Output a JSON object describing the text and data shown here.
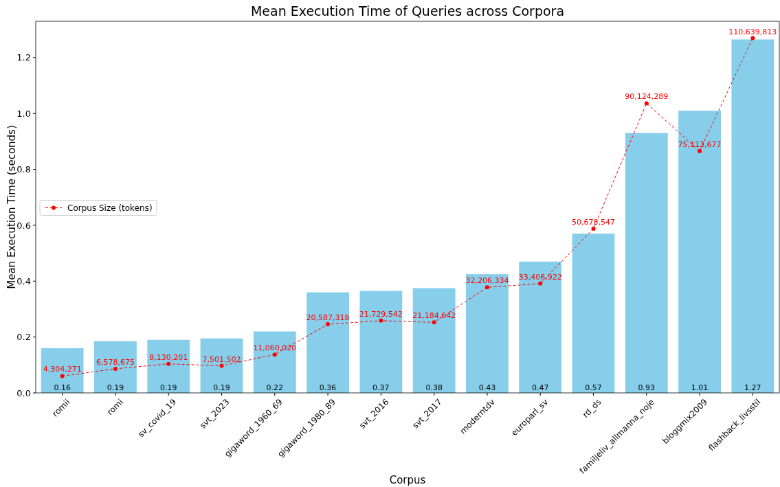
{
  "chart_data": {
    "type": "bar",
    "title": "Mean Execution Time of Queries across Corpora",
    "xlabel": "Corpus",
    "ylabel": "Mean Execution Time (seconds)",
    "categories": [
      "romii",
      "romi",
      "sv_covid_19",
      "svt_2023",
      "gigaword_1960_69",
      "gigaword_1980_89",
      "svt_2016",
      "svt_2017",
      "moderntdv",
      "europarl_sv",
      "rd_ds",
      "familjeliv_allmanna_noje",
      "bloggmix2009",
      "flashback_livsstil"
    ],
    "ylim": [
      0,
      1.33
    ],
    "yticks": [
      {
        "value": 0,
        "label": "0.0"
      },
      {
        "value": 0.2,
        "label": "0.2"
      },
      {
        "value": 0.4,
        "label": "0.4"
      },
      {
        "value": 0.6,
        "label": "0.6"
      },
      {
        "value": 0.8,
        "label": "0.8"
      },
      {
        "value": 1,
        "label": "1.0"
      },
      {
        "value": 1.2,
        "label": "1.2"
      }
    ],
    "y2lim": [
      -1012000,
      115956000
    ],
    "legend": "left",
    "grid": false,
    "series": [
      {
        "color": "#87ceeb",
        "values": [
          0.16,
          0.185,
          0.19,
          0.195,
          0.22,
          0.36,
          0.365,
          0.375,
          0.425,
          0.47,
          0.57,
          0.93,
          1.01,
          1.265
        ],
        "value_labels": [
          "0.16",
          "0.19",
          "0.19",
          "0.19",
          "0.22",
          "0.36",
          "0.37",
          "0.38",
          "0.43",
          "0.47",
          "0.57",
          "0.93",
          "1.01",
          "1.27"
        ]
      },
      {
        "type": "line",
        "name": "Corpus Size (tokens)",
        "axis": "y2",
        "color": "#ff0000",
        "marker": "circle",
        "line_style": "dashed",
        "values": [
          4304271,
          6578675,
          8130201,
          7501502,
          11060020,
          20587318,
          21729542,
          21184642,
          32206334,
          33406922,
          50678547,
          90124289,
          75113677,
          110639813
        ],
        "value_labels": [
          "4,304,271",
          "6,578,675",
          "8,130,201",
          "7,501,502",
          "11,060,020",
          "20,587,318",
          "21,729,542",
          "21,184,642",
          "32,206,334",
          "33,406,922",
          "50,678,547",
          "90,124,289",
          "75,113,677",
          "110,639,813"
        ]
      }
    ]
  }
}
